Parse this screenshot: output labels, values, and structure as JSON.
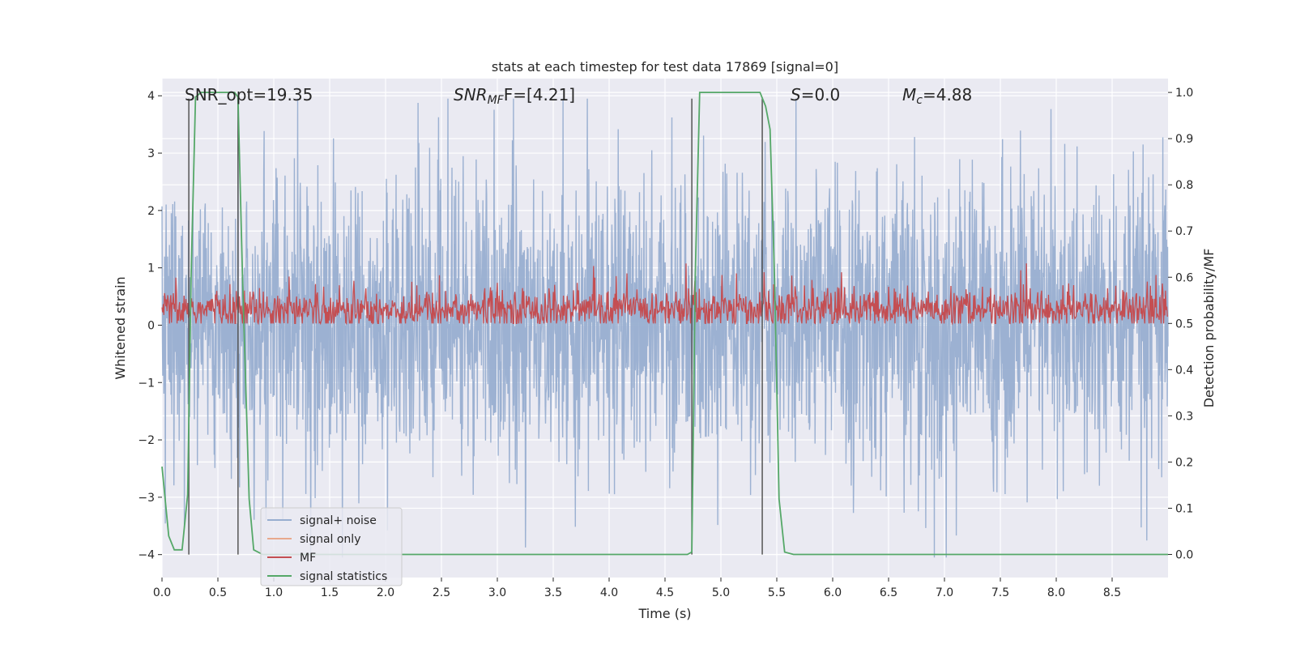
{
  "chart_data": {
    "type": "line",
    "title": "stats at each timestep for test data 17869 [signal=0]",
    "xlabel": "Time (s)",
    "ylabel": "Whitened strain",
    "ylabel_right": "Detection probability/MF",
    "xlim": [
      0.0,
      9.0
    ],
    "ylim": [
      -4.4,
      4.3
    ],
    "ylim_right": [
      -0.05,
      1.03
    ],
    "xticks": [
      0.0,
      0.5,
      1.0,
      1.5,
      2.0,
      2.5,
      3.0,
      3.5,
      4.0,
      4.5,
      5.0,
      5.5,
      6.0,
      6.5,
      7.0,
      7.5,
      8.0,
      8.5
    ],
    "xtick_labels": [
      "0.0",
      "0.5",
      "1.0",
      "1.5",
      "2.0",
      "2.5",
      "3.0",
      "3.5",
      "4.0",
      "4.5",
      "5.0",
      "5.5",
      "6.0",
      "6.5",
      "7.0",
      "7.5",
      "8.0",
      "8.5"
    ],
    "yticks": [
      4,
      3,
      2,
      1,
      0,
      -1,
      -2,
      -3,
      -4
    ],
    "ytick_labels": [
      "4",
      "3",
      "2",
      "1",
      "0",
      "−1",
      "−2",
      "−3",
      "−4"
    ],
    "yticks_right": [
      1.0,
      0.9,
      0.8,
      0.7,
      0.6,
      0.5,
      0.4,
      0.3,
      0.2,
      0.1,
      0.0
    ],
    "ytick_labels_right": [
      "1.0",
      "0.9",
      "0.8",
      "0.7",
      "0.6",
      "0.5",
      "0.4",
      "0.3",
      "0.2",
      "0.1",
      "0.0"
    ],
    "grid": true,
    "legend_position": "lower-left",
    "series": [
      {
        "name": "signal+ noise",
        "color": "#98aed0",
        "description": "dense whitened noise, amplitude ~±3, peaks to ~4"
      },
      {
        "name": "signal only",
        "color": "#e8a98d",
        "values": []
      },
      {
        "name": "MF",
        "color": "#c44e52",
        "axis": "right",
        "mean": 0.53,
        "range": [
          0.5,
          0.63
        ]
      },
      {
        "name": "signal statistics",
        "color": "#55a868",
        "axis": "right",
        "x": [
          0.0,
          0.06,
          0.11,
          0.18,
          0.23,
          0.26,
          0.3,
          0.35,
          0.45,
          0.55,
          0.65,
          0.68,
          0.72,
          0.78,
          0.82,
          0.9,
          1.2,
          2.0,
          3.0,
          4.0,
          4.5,
          4.7,
          4.74,
          4.77,
          4.81,
          4.85,
          5.0,
          5.2,
          5.35,
          5.4,
          5.44,
          5.48,
          5.52,
          5.57,
          5.65,
          6.0,
          7.0,
          8.0,
          9.0
        ],
        "values": [
          0.19,
          0.04,
          0.01,
          0.01,
          0.13,
          0.6,
          0.99,
          1.0,
          1.0,
          1.0,
          1.0,
          0.99,
          0.6,
          0.12,
          0.01,
          0.0,
          0.0,
          0.0,
          0.0,
          0.0,
          0.0,
          0.0,
          0.005,
          0.6,
          1.0,
          1.0,
          1.0,
          1.0,
          1.0,
          0.97,
          0.92,
          0.6,
          0.12,
          0.005,
          0.0,
          0.0,
          0.0,
          0.0,
          0.0
        ]
      }
    ],
    "vlines": [
      0.24,
      0.68,
      4.74,
      5.37
    ],
    "annotations": {
      "snr_opt": "SNR_opt=19.35",
      "snr_mf_main": "SNR",
      "snr_mf_sub": "MF",
      "snr_mf_rest": "F=[4.21]",
      "s_main": "S",
      "s_rest": "=0.0",
      "mc_main": "M",
      "mc_sub": "c",
      "mc_rest": "=4.88"
    },
    "colors": {
      "plot_bg": "#eaeaf2",
      "grid": "#ffffff",
      "noise": "#98aed0",
      "signal_only": "#e8a98d",
      "mf": "#c44e52",
      "stats": "#55a868",
      "vline": "#555555"
    }
  }
}
